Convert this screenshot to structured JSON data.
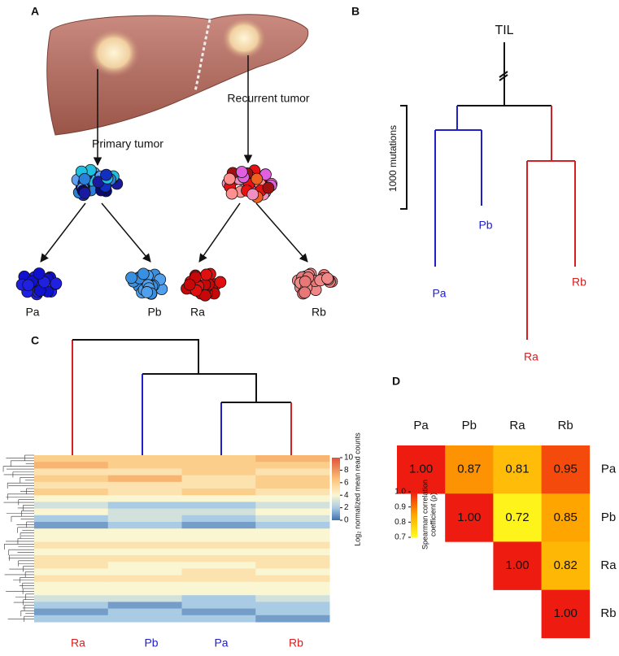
{
  "panel_a": {
    "letter": "A",
    "primary_label": "Primary tumor",
    "recurrent_label": "Recurrent tumor",
    "samples": [
      "Pa",
      "Pb",
      "Ra",
      "Rb"
    ]
  },
  "panel_b": {
    "letter": "B",
    "root_label": "TIL",
    "scale_label": "1000 mutations",
    "leaves": [
      "Pa",
      "Pb",
      "Ra",
      "Rb"
    ]
  },
  "panel_c": {
    "letter": "C",
    "columns": [
      "Ra",
      "Pb",
      "Pa",
      "Rb"
    ],
    "values": [
      [
        6,
        7,
        5,
        6,
        5,
        6,
        4,
        3,
        4,
        2,
        1,
        4,
        4,
        5,
        4,
        5,
        5,
        4,
        5,
        4,
        4,
        3,
        2,
        1,
        2
      ],
      [
        6,
        6,
        5,
        7,
        5,
        5,
        4,
        2,
        3,
        3,
        2,
        4,
        4,
        5,
        4,
        5,
        4,
        4,
        5,
        4,
        4,
        3,
        1,
        2,
        2
      ],
      [
        6,
        6,
        6,
        5,
        5,
        6,
        4,
        2,
        3,
        2,
        1,
        4,
        4,
        5,
        4,
        5,
        4,
        5,
        5,
        4,
        4,
        2,
        2,
        1,
        2
      ],
      [
        7,
        6,
        5,
        6,
        6,
        5,
        4,
        3,
        4,
        3,
        2,
        4,
        4,
        5,
        4,
        5,
        5,
        4,
        5,
        4,
        4,
        3,
        2,
        2,
        1
      ]
    ],
    "clim": [
      0,
      10
    ],
    "colorbar_ticks": [
      0,
      2,
      4,
      6,
      8,
      10
    ],
    "colorbar_label": "Log₂ normalized mean read counts"
  },
  "panel_d": {
    "letter": "D",
    "columns": [
      "Pa",
      "Pb",
      "Ra",
      "Rb"
    ],
    "rows": [
      "Pa",
      "Pb",
      "Ra",
      "Rb"
    ],
    "values": [
      [
        1,
        0.87,
        0.81,
        0.95
      ],
      [
        null,
        1,
        0.72,
        0.85
      ],
      [
        null,
        null,
        1,
        0.82
      ],
      [
        null,
        null,
        null,
        1
      ]
    ],
    "value_labels": [
      [
        "1.00",
        "0.87",
        "0.81",
        "0.95"
      ],
      [
        null,
        "1.00",
        "0.72",
        "0.85"
      ],
      [
        null,
        null,
        "1.00",
        "0.82"
      ],
      [
        null,
        null,
        null,
        "1.00"
      ]
    ],
    "clim": [
      0.7,
      1
    ],
    "colorbar_ticks": [
      0.7,
      0.8,
      0.9,
      {
        "value": 1,
        "label": "1.0"
      }
    ],
    "colorbar_label": [
      "Spearman correlation",
      "coefficient (ρ)"
    ]
  }
}
